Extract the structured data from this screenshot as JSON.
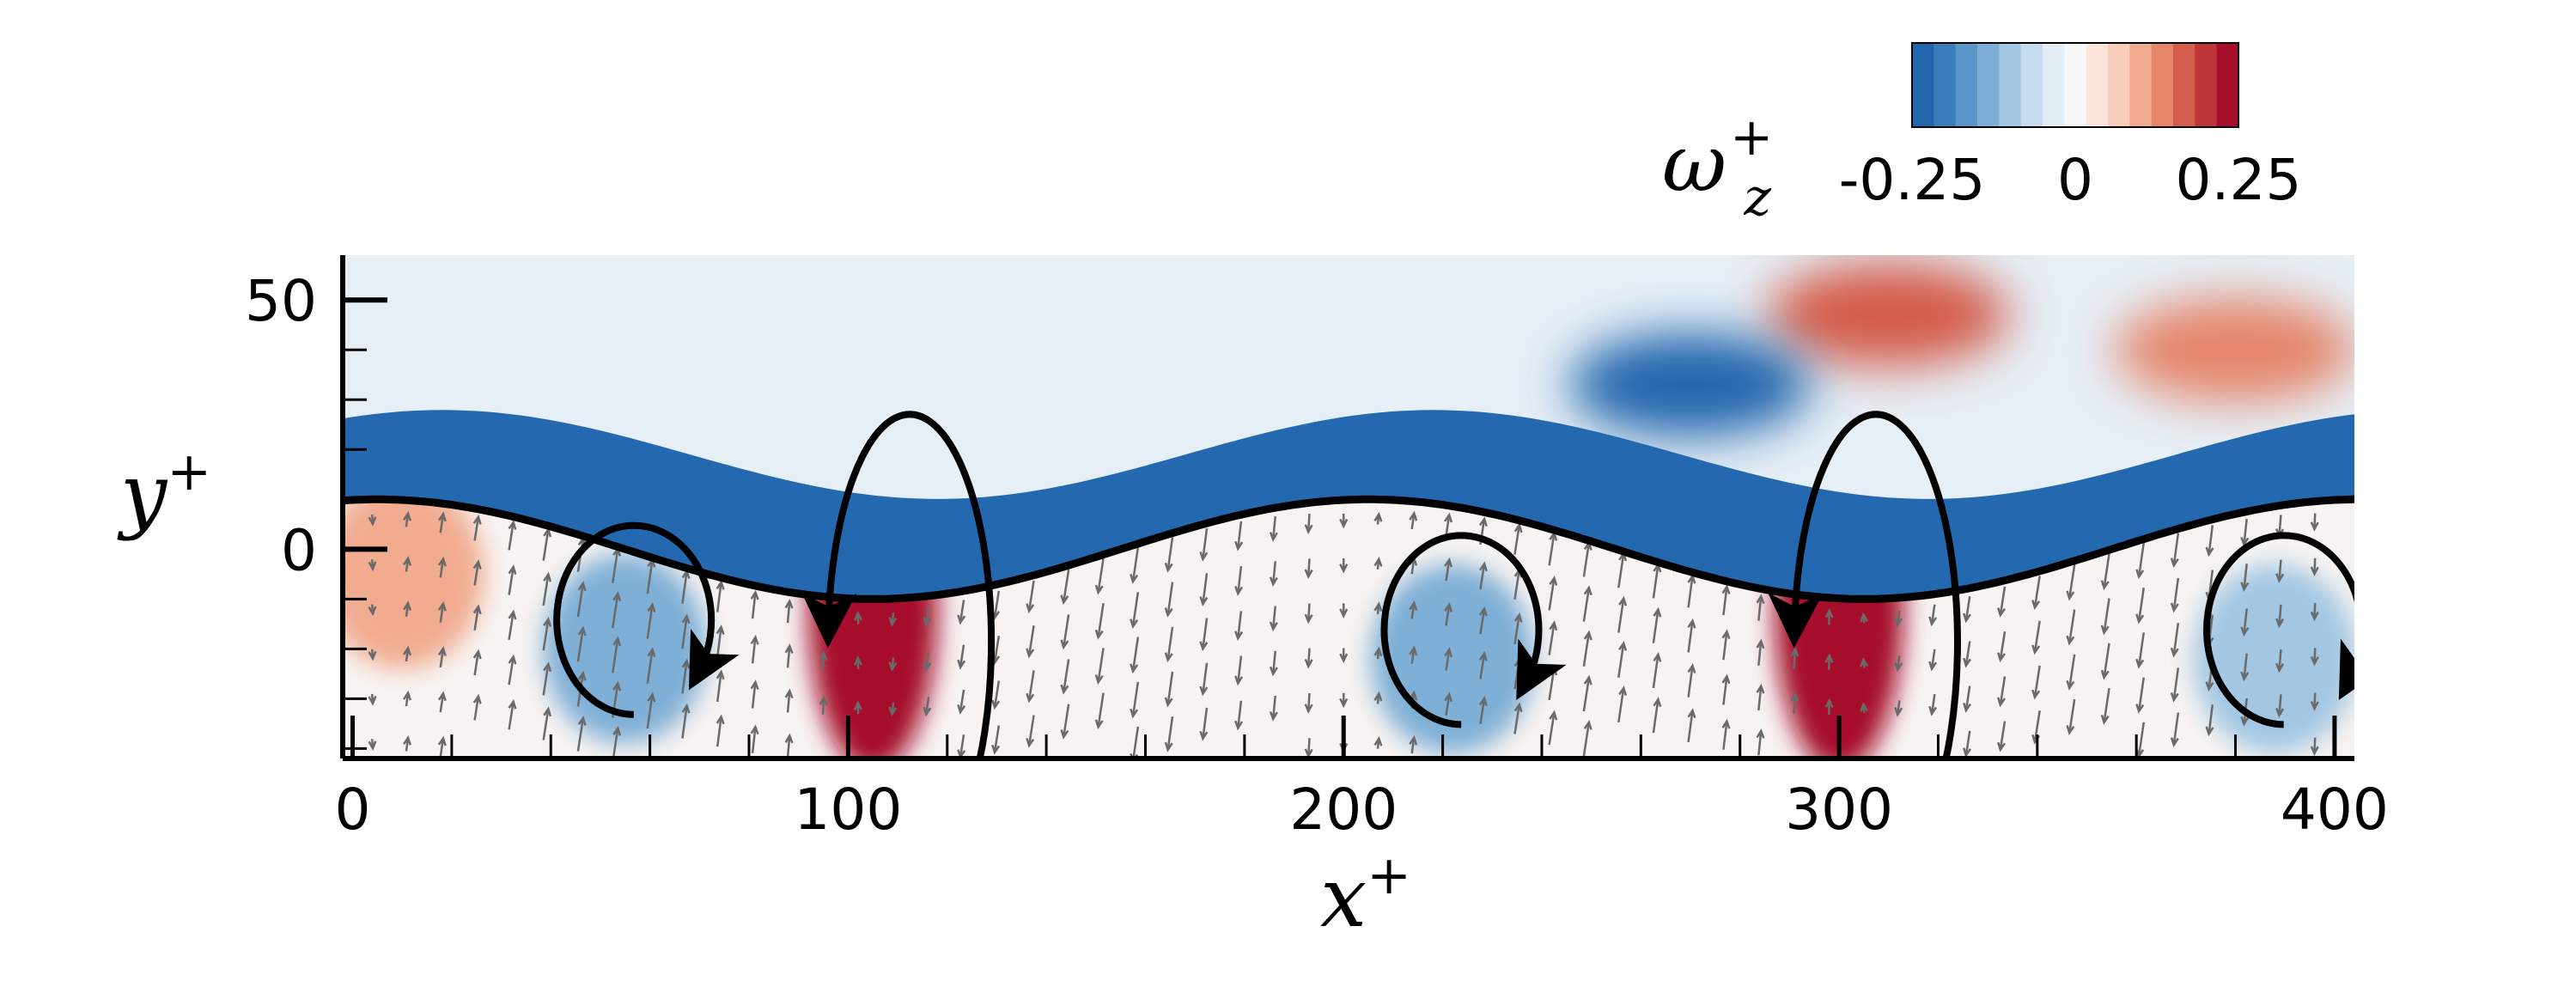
{
  "chart_data": {
    "type": "heatmap",
    "title": "",
    "xlabel": {
      "base": "x",
      "sup": "+"
    },
    "ylabel": {
      "base": "y",
      "sup": "+"
    },
    "xlim": [
      -2,
      404
    ],
    "ylim": [
      -42,
      59
    ],
    "x_ticks": [
      {
        "value": 0,
        "label": "0"
      },
      {
        "value": 100,
        "label": "100"
      },
      {
        "value": 200,
        "label": "200"
      },
      {
        "value": 300,
        "label": "300"
      },
      {
        "value": 400,
        "label": "400"
      }
    ],
    "y_ticks": [
      {
        "value": 0,
        "label": "0"
      },
      {
        "value": 50,
        "label": "50"
      }
    ],
    "colorbar": {
      "title": {
        "base": "ω",
        "sub": "z",
        "sup": "+"
      },
      "range": [
        -0.25,
        0.25
      ],
      "ticks": [
        {
          "value": -0.25,
          "label": "-0.25"
        },
        {
          "value": 0,
          "label": "0"
        },
        {
          "value": 0.25,
          "label": "0.25"
        }
      ],
      "colors": [
        "#2166ac",
        "#3a7dbb",
        "#5a96c8",
        "#7eafd6",
        "#a3c7e3",
        "#c6dcee",
        "#e3edf5",
        "#f7f7f7",
        "#fbe5da",
        "#f7cdb9",
        "#f1ac90",
        "#e5856a",
        "#d45c4a",
        "#be3536",
        "#a50f2a"
      ],
      "placement": "top-right"
    },
    "wall": {
      "wavelength": 200,
      "amplitude": 10,
      "crest_x": [
        105,
        305
      ],
      "trough_x": [
        5,
        205,
        405
      ]
    },
    "vortex_markers": [
      {
        "x": 55,
        "y": -18,
        "rotation": "clockwise"
      },
      {
        "x": 110,
        "y": -18,
        "rotation": "counterclockwise"
      },
      {
        "x": 222,
        "y": -20,
        "rotation": "clockwise"
      },
      {
        "x": 305,
        "y": -18,
        "rotation": "counterclockwise"
      },
      {
        "x": 388,
        "y": -20,
        "rotation": "clockwise"
      }
    ],
    "field_regions": [
      {
        "x": 310,
        "y": 47,
        "value": 0.18
      },
      {
        "x": 380,
        "y": 40,
        "value": 0.12
      },
      {
        "x": 105,
        "y": -12,
        "value": 0.22
      },
      {
        "x": 300,
        "y": -12,
        "value": 0.25
      },
      {
        "x": 55,
        "y": -20,
        "value": -0.12
      },
      {
        "x": 222,
        "y": -22,
        "value": -0.14
      },
      {
        "x": 388,
        "y": -22,
        "value": -0.1
      },
      {
        "x": 10,
        "y": -5,
        "value": 0.1
      },
      {
        "x": 270,
        "y": 33,
        "value": -0.22
      }
    ]
  }
}
